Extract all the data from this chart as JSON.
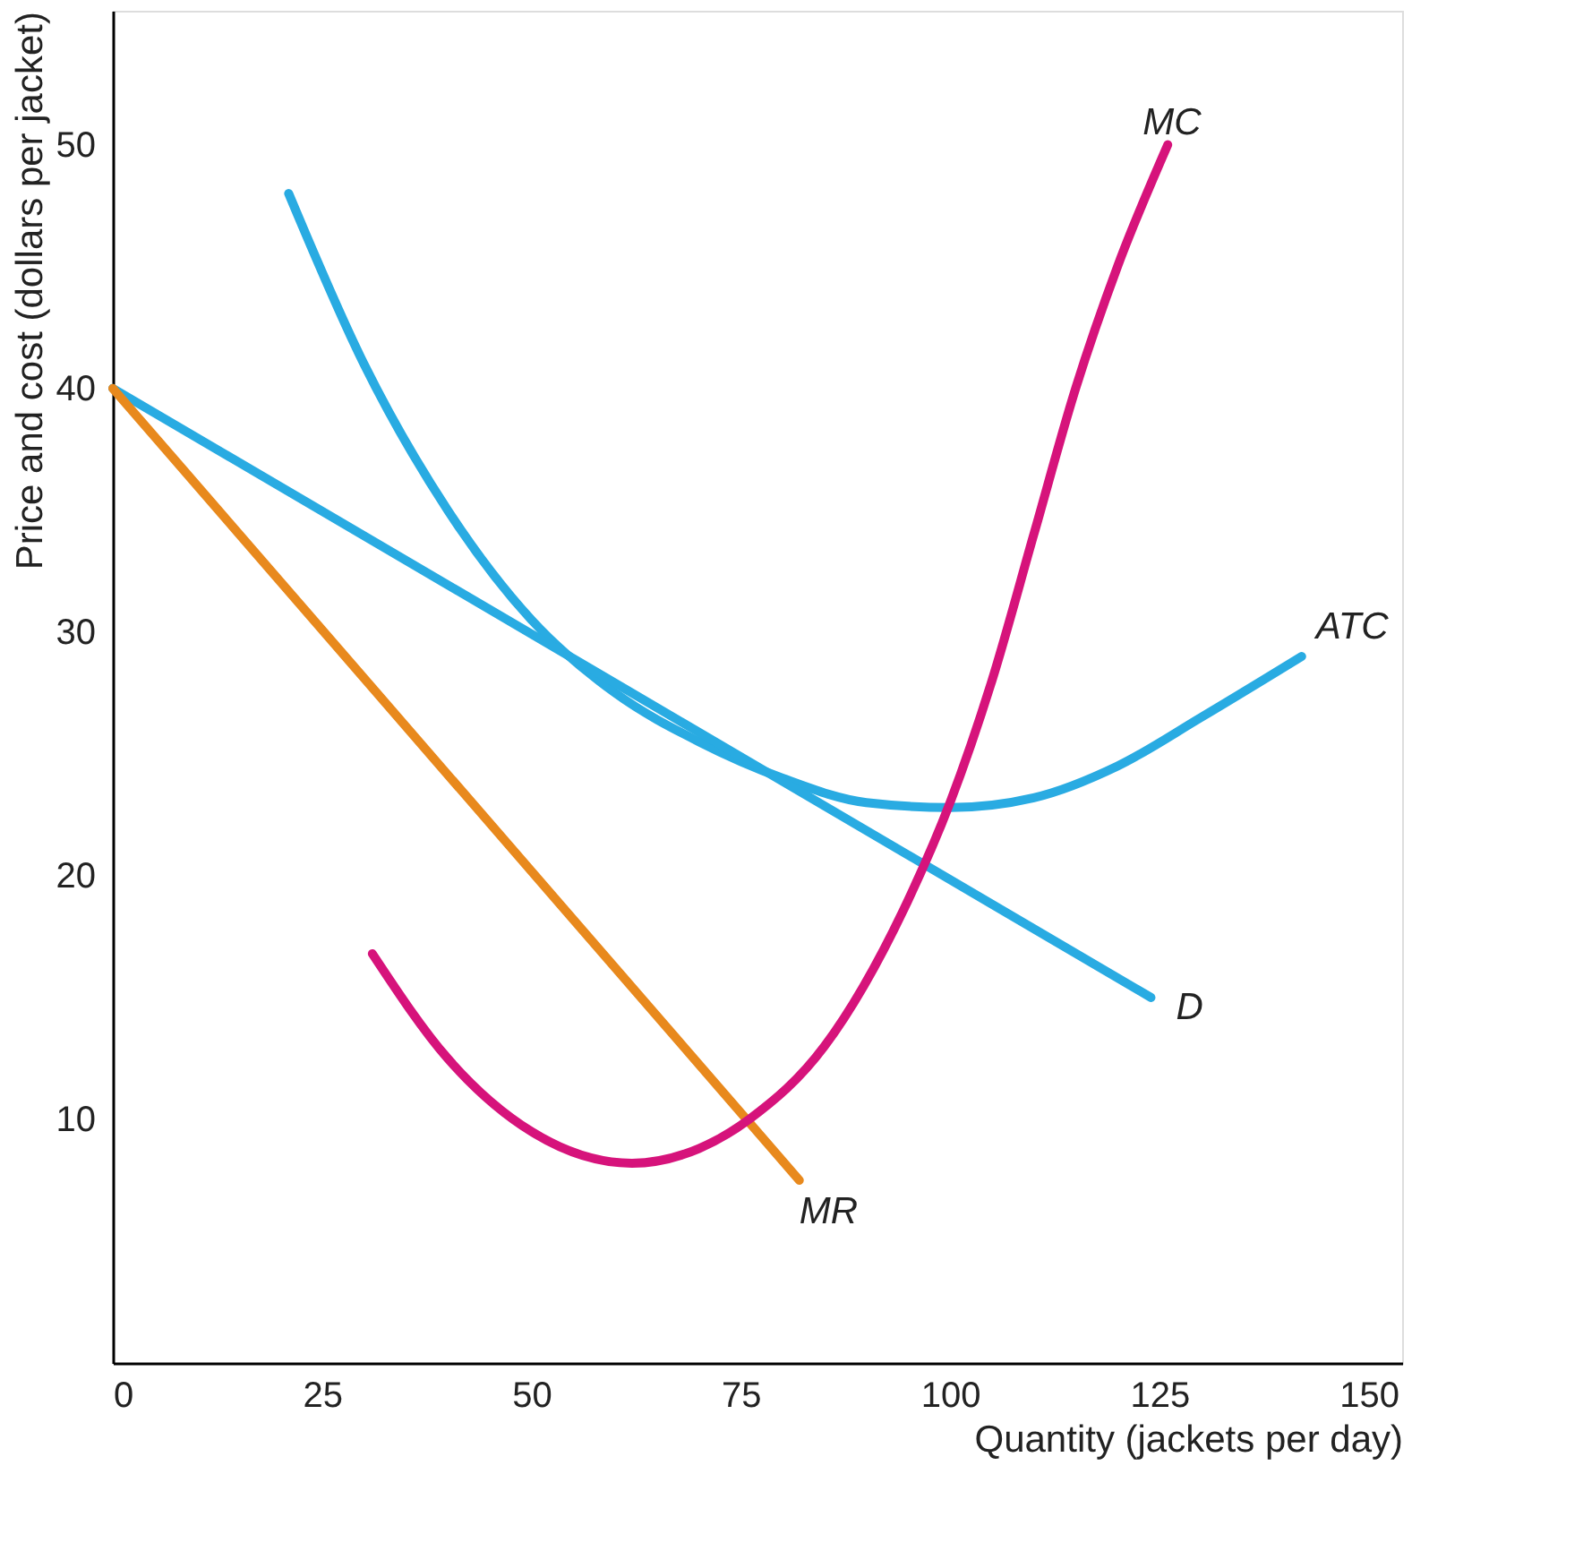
{
  "chart_data": {
    "type": "line",
    "xlabel": "Quantity (jackets per day)",
    "ylabel": "Price and cost (dollars per jacket)",
    "xlim": [
      0,
      154
    ],
    "ylim": [
      0,
      55.5
    ],
    "xticks": [
      0,
      25,
      50,
      75,
      100,
      125,
      150
    ],
    "yticks": [
      10,
      20,
      30,
      40,
      50
    ],
    "grid": false,
    "line_style": "solid",
    "marker": "none",
    "series": [
      {
        "name": "ATC",
        "color": "#29abe2",
        "x": [
          21,
          30,
          40,
          50,
          60,
          70,
          80,
          90,
          100,
          110,
          120,
          130,
          142
        ],
        "values": [
          48,
          41,
          35,
          30.5,
          27.5,
          25.5,
          24,
          23,
          22.8,
          23.2,
          24.5,
          26.5,
          29
        ]
      },
      {
        "name": "D",
        "color": "#29abe2",
        "x": [
          0,
          124
        ],
        "values": [
          40,
          15
        ]
      },
      {
        "name": "MR",
        "color": "#e8891d",
        "x": [
          0,
          82
        ],
        "values": [
          40,
          7.5
        ]
      },
      {
        "name": "MC",
        "color": "#d6137b",
        "x": [
          31,
          40,
          50,
          62,
          70,
          76,
          85,
          95,
          100,
          105,
          110,
          115,
          120,
          126
        ],
        "values": [
          16.8,
          12.5,
          9.5,
          8.2,
          8.8,
          10,
          13,
          19,
          23,
          28,
          34,
          40,
          45,
          50
        ]
      }
    ]
  }
}
